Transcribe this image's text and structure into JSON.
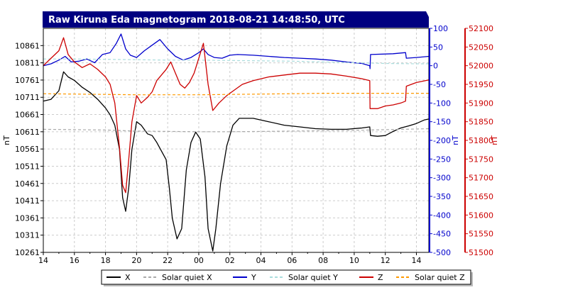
{
  "chart_data": {
    "type": "line",
    "title": "Raw Kiruna Eda magnetogram 2018-08-21 14:48:50, UTC",
    "xlabel": "",
    "x_ticks": [
      "14",
      "16",
      "18",
      "20",
      "22",
      "00",
      "02",
      "04",
      "06",
      "08",
      "10",
      "12",
      "14"
    ],
    "x_range_hours": [
      14,
      38.8
    ],
    "axes": {
      "left": {
        "label": "nT",
        "range": [
          10261,
          10911
        ],
        "ticks": [
          10261,
          10311,
          10361,
          10411,
          10461,
          10511,
          10561,
          10611,
          10661,
          10711,
          10761,
          10811,
          10861
        ],
        "color": "#000000"
      },
      "right1": {
        "label": "nT",
        "range": [
          -500,
          100
        ],
        "ticks": [
          -500,
          -450,
          -400,
          -350,
          -300,
          -250,
          -200,
          -150,
          -100,
          -50,
          0,
          50,
          100
        ],
        "color": "#0000cc"
      },
      "right2": {
        "label": "nT",
        "range": [
          51500,
          52100
        ],
        "ticks": [
          51500,
          51550,
          51600,
          51650,
          51700,
          51750,
          51800,
          51850,
          51900,
          51950,
          52000,
          52050,
          52100
        ],
        "color": "#cc0000"
      }
    },
    "series": [
      {
        "name": "X",
        "axis": "left",
        "color": "#000000",
        "dash": false,
        "points": [
          [
            14,
            10700
          ],
          [
            14.5,
            10705
          ],
          [
            15,
            10730
          ],
          [
            15.3,
            10785
          ],
          [
            15.6,
            10770
          ],
          [
            16,
            10760
          ],
          [
            16.5,
            10740
          ],
          [
            17,
            10725
          ],
          [
            17.5,
            10705
          ],
          [
            18,
            10680
          ],
          [
            18.3,
            10660
          ],
          [
            18.6,
            10630
          ],
          [
            18.9,
            10560
          ],
          [
            19.1,
            10420
          ],
          [
            19.3,
            10380
          ],
          [
            19.5,
            10450
          ],
          [
            19.7,
            10560
          ],
          [
            20,
            10640
          ],
          [
            20.3,
            10630
          ],
          [
            20.7,
            10605
          ],
          [
            21,
            10600
          ],
          [
            21.3,
            10580
          ],
          [
            21.6,
            10555
          ],
          [
            21.9,
            10530
          ],
          [
            22.1,
            10450
          ],
          [
            22.3,
            10360
          ],
          [
            22.6,
            10300
          ],
          [
            22.9,
            10330
          ],
          [
            23.2,
            10500
          ],
          [
            23.5,
            10580
          ],
          [
            23.8,
            10610
          ],
          [
            24.1,
            10590
          ],
          [
            24.4,
            10480
          ],
          [
            24.6,
            10330
          ],
          [
            24.9,
            10265
          ],
          [
            25.1,
            10330
          ],
          [
            25.4,
            10460
          ],
          [
            25.8,
            10570
          ],
          [
            26.2,
            10630
          ],
          [
            26.6,
            10650
          ],
          [
            27.5,
            10650
          ],
          [
            28.5,
            10640
          ],
          [
            29.5,
            10630
          ],
          [
            30.5,
            10625
          ],
          [
            31.5,
            10620
          ],
          [
            32.5,
            10618
          ],
          [
            33.5,
            10618
          ],
          [
            34.5,
            10622
          ],
          [
            35,
            10625
          ],
          [
            35.05,
            10600
          ],
          [
            35.5,
            10598
          ],
          [
            36,
            10600
          ],
          [
            36.5,
            10612
          ],
          [
            37,
            10622
          ],
          [
            37.5,
            10628
          ],
          [
            38,
            10635
          ],
          [
            38.5,
            10645
          ],
          [
            38.8,
            10648
          ]
        ]
      },
      {
        "name": "Solar quiet X",
        "axis": "left",
        "color": "#aaaaaa",
        "dash": true,
        "points": [
          [
            14,
            10618
          ],
          [
            16,
            10617
          ],
          [
            18,
            10616
          ],
          [
            20,
            10613
          ],
          [
            22,
            10612
          ],
          [
            24,
            10611
          ],
          [
            26,
            10611
          ],
          [
            28,
            10612
          ],
          [
            30,
            10613
          ],
          [
            32,
            10614
          ],
          [
            34,
            10615
          ],
          [
            36,
            10617
          ],
          [
            38,
            10619
          ],
          [
            38.8,
            10620
          ]
        ]
      },
      {
        "name": "Y",
        "axis": "right1",
        "color": "#0000cc",
        "dash": false,
        "points": [
          [
            14,
            0
          ],
          [
            14.5,
            5
          ],
          [
            15,
            15
          ],
          [
            15.4,
            25
          ],
          [
            15.8,
            10
          ],
          [
            16.3,
            12
          ],
          [
            16.8,
            18
          ],
          [
            17.3,
            8
          ],
          [
            17.8,
            30
          ],
          [
            18.3,
            35
          ],
          [
            18.7,
            60
          ],
          [
            19,
            85
          ],
          [
            19.3,
            45
          ],
          [
            19.6,
            28
          ],
          [
            20,
            22
          ],
          [
            20.5,
            40
          ],
          [
            21,
            55
          ],
          [
            21.5,
            70
          ],
          [
            22,
            45
          ],
          [
            22.5,
            25
          ],
          [
            23,
            15
          ],
          [
            23.5,
            22
          ],
          [
            24,
            35
          ],
          [
            24.3,
            45
          ],
          [
            24.6,
            30
          ],
          [
            25,
            22
          ],
          [
            25.5,
            20
          ],
          [
            26,
            28
          ],
          [
            26.5,
            30
          ],
          [
            27.5,
            28
          ],
          [
            28.5,
            25
          ],
          [
            29.5,
            22
          ],
          [
            30.5,
            20
          ],
          [
            31.5,
            18
          ],
          [
            32.5,
            15
          ],
          [
            33.5,
            10
          ],
          [
            34,
            8
          ],
          [
            34.5,
            6
          ],
          [
            35,
            0
          ],
          [
            35.02,
            -8
          ],
          [
            35.05,
            30
          ],
          [
            36.5,
            32
          ],
          [
            37.3,
            35
          ],
          [
            37.35,
            20
          ],
          [
            38,
            22
          ],
          [
            38.8,
            25
          ]
        ]
      },
      {
        "name": "Solar quiet Y",
        "axis": "right1",
        "color": "#aadddd",
        "dash": true,
        "points": [
          [
            14,
            18
          ],
          [
            16,
            18
          ],
          [
            18,
            17
          ],
          [
            20,
            16
          ],
          [
            22,
            15
          ],
          [
            24,
            15
          ],
          [
            26,
            14
          ],
          [
            28,
            13
          ],
          [
            30,
            12
          ],
          [
            32,
            10
          ],
          [
            34,
            8
          ],
          [
            36,
            6
          ],
          [
            38,
            5
          ],
          [
            38.8,
            5
          ]
        ]
      },
      {
        "name": "Z",
        "axis": "right2",
        "color": "#cc0000",
        "dash": false,
        "points": [
          [
            14,
            52000
          ],
          [
            14.5,
            52020
          ],
          [
            15,
            52040
          ],
          [
            15.3,
            52075
          ],
          [
            15.6,
            52030
          ],
          [
            16,
            52010
          ],
          [
            16.5,
            51995
          ],
          [
            17,
            52005
          ],
          [
            17.5,
            51990
          ],
          [
            18,
            51970
          ],
          [
            18.3,
            51950
          ],
          [
            18.6,
            51900
          ],
          [
            18.9,
            51780
          ],
          [
            19.1,
            51680
          ],
          [
            19.3,
            51660
          ],
          [
            19.5,
            51750
          ],
          [
            19.7,
            51850
          ],
          [
            20,
            51920
          ],
          [
            20.3,
            51900
          ],
          [
            20.7,
            51915
          ],
          [
            21,
            51930
          ],
          [
            21.3,
            51960
          ],
          [
            21.6,
            51975
          ],
          [
            21.9,
            51990
          ],
          [
            22.2,
            52010
          ],
          [
            22.5,
            51980
          ],
          [
            22.8,
            51950
          ],
          [
            23.1,
            51940
          ],
          [
            23.4,
            51955
          ],
          [
            23.7,
            51980
          ],
          [
            24,
            52020
          ],
          [
            24.3,
            52060
          ],
          [
            24.6,
            51950
          ],
          [
            24.9,
            51880
          ],
          [
            25.3,
            51900
          ],
          [
            25.8,
            51920
          ],
          [
            26.3,
            51935
          ],
          [
            26.8,
            51950
          ],
          [
            27.5,
            51960
          ],
          [
            28.5,
            51970
          ],
          [
            29.5,
            51975
          ],
          [
            30.5,
            51980
          ],
          [
            31.5,
            51980
          ],
          [
            32.5,
            51978
          ],
          [
            33.5,
            51972
          ],
          [
            34.5,
            51965
          ],
          [
            35,
            51960
          ],
          [
            35.02,
            51885
          ],
          [
            35.5,
            51885
          ],
          [
            36,
            51892
          ],
          [
            36.5,
            51895
          ],
          [
            37,
            51900
          ],
          [
            37.3,
            51905
          ],
          [
            37.35,
            51945
          ],
          [
            38,
            51955
          ],
          [
            38.8,
            51962
          ]
        ]
      },
      {
        "name": "Solar quiet Z",
        "axis": "right2",
        "color": "#ff9900",
        "dash": true,
        "points": [
          [
            14,
            51925
          ],
          [
            16,
            51924
          ],
          [
            18,
            51923
          ],
          [
            20,
            51922
          ],
          [
            22,
            51922
          ],
          [
            24,
            51922
          ],
          [
            26,
            51923
          ],
          [
            28,
            51924
          ],
          [
            30,
            51925
          ],
          [
            32,
            51926
          ],
          [
            34,
            51926
          ],
          [
            36,
            51926
          ],
          [
            38,
            51926
          ],
          [
            38.8,
            51926
          ]
        ]
      }
    ],
    "legend": [
      {
        "label": "X",
        "color": "#000000",
        "dash": false
      },
      {
        "label": "Solar quiet X",
        "color": "#aaaaaa",
        "dash": true
      },
      {
        "label": "Y",
        "color": "#0000cc",
        "dash": false
      },
      {
        "label": "Solar quiet Y",
        "color": "#aadddd",
        "dash": true
      },
      {
        "label": "Z",
        "color": "#cc0000",
        "dash": false
      },
      {
        "label": "Solar quiet Z",
        "color": "#ff9900",
        "dash": true
      }
    ],
    "legend_position": "bottom-center",
    "grid": true
  }
}
